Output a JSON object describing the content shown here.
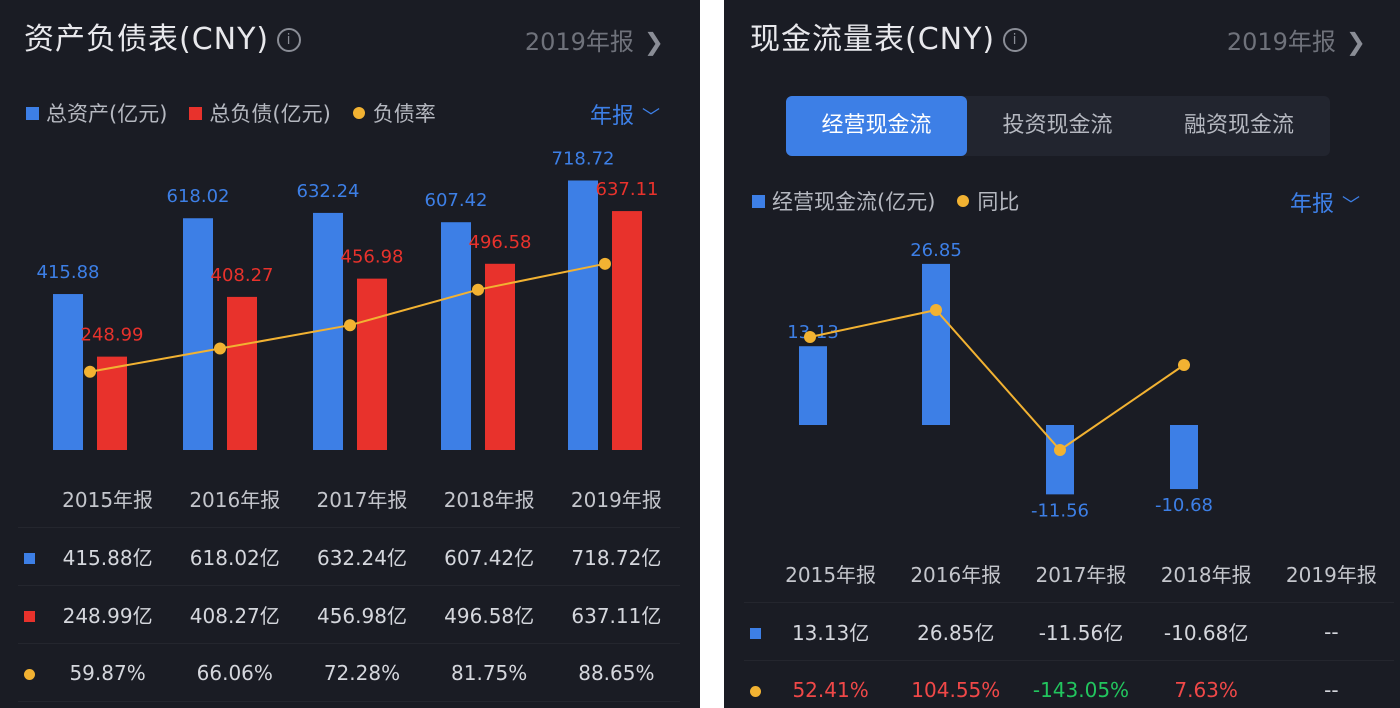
{
  "balance": {
    "title": "资产负债表(CNY)",
    "report_label": "2019年报",
    "legend": [
      "总资产(亿元)",
      "总负债(亿元)",
      "负债率"
    ],
    "period_label": "年报",
    "table": {
      "headers": [
        "2015年报",
        "2016年报",
        "2017年报",
        "2018年报",
        "2019年报"
      ],
      "rows": [
        [
          "415.88亿",
          "618.02亿",
          "632.24亿",
          "607.42亿",
          "718.72亿"
        ],
        [
          "248.99亿",
          "408.27亿",
          "456.98亿",
          "496.58亿",
          "637.11亿"
        ],
        [
          "59.87%",
          "66.06%",
          "72.28%",
          "81.75%",
          "88.65%"
        ]
      ]
    }
  },
  "cashflow": {
    "title": "现金流量表(CNY)",
    "report_label": "2019年报",
    "tabs": [
      "经营现金流",
      "投资现金流",
      "融资现金流"
    ],
    "active_tab": 0,
    "legend": [
      "经营现金流(亿元)",
      "同比"
    ],
    "period_label": "年报",
    "table": {
      "headers": [
        "2015年报",
        "2016年报",
        "2017年报",
        "2018年报",
        "2019年报"
      ],
      "rows": [
        [
          "13.13亿",
          "26.85亿",
          "-11.56亿",
          "-10.68亿",
          "--"
        ],
        [
          "52.41%",
          "104.55%",
          "-143.05%",
          "7.63%",
          "--"
        ]
      ]
    }
  },
  "colors": {
    "blue": "#3d7fe6",
    "red": "#e8322c",
    "yellow": "#f2b232",
    "up_red": "#f04848",
    "down_green": "#22c55e"
  },
  "chart_data": [
    {
      "type": "bar",
      "title": "资产负债表(CNY)",
      "categories": [
        "2015年报",
        "2016年报",
        "2017年报",
        "2018年报",
        "2019年报"
      ],
      "series": [
        {
          "name": "总资产(亿元)",
          "type": "bar",
          "values": [
            415.88,
            618.02,
            632.24,
            607.42,
            718.72
          ],
          "labels": [
            "415.88",
            "618.02",
            "632.24",
            "607.42",
            "718.72"
          ]
        },
        {
          "name": "总负债(亿元)",
          "type": "bar",
          "values": [
            248.99,
            408.27,
            456.98,
            496.58,
            637.11
          ],
          "labels": [
            "248.99",
            "408.27",
            "456.98",
            "496.58",
            "637.11"
          ]
        },
        {
          "name": "负债率",
          "type": "line",
          "values": [
            59.87,
            66.06,
            72.28,
            81.75,
            88.65
          ]
        }
      ],
      "grid": false,
      "legend": "top-left"
    },
    {
      "type": "bar",
      "title": "现金流量表(CNY)",
      "categories": [
        "2015年报",
        "2016年报",
        "2017年报",
        "2018年报",
        "2019年报"
      ],
      "series": [
        {
          "name": "经营现金流(亿元)",
          "type": "bar",
          "values": [
            13.13,
            26.85,
            -11.56,
            -10.68,
            null
          ],
          "labels": [
            "13.13",
            "26.85",
            "-11.56",
            "-10.68",
            ""
          ]
        },
        {
          "name": "同比",
          "type": "line",
          "values": [
            52.41,
            104.55,
            -143.05,
            7.63,
            null
          ]
        }
      ],
      "grid": false,
      "legend": "top-left"
    }
  ]
}
